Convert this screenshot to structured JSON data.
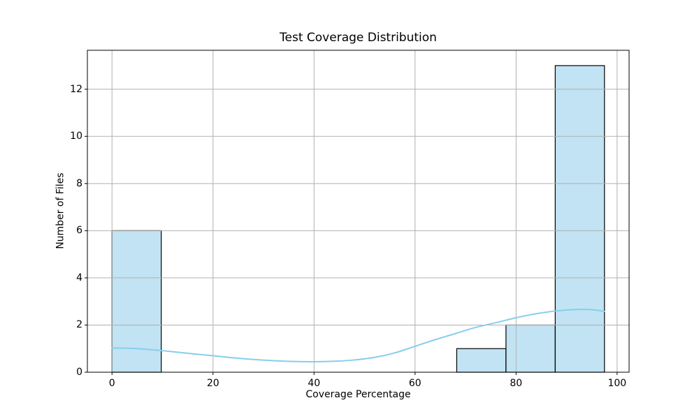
{
  "chart_data": {
    "type": "histogram",
    "title": "Test Coverage Distribution",
    "xlabel": "Coverage Percentage",
    "ylabel": "Number of Files",
    "xlim": [
      -4.875,
      102.375
    ],
    "ylim": [
      0,
      13.65
    ],
    "xticks": [
      0,
      20,
      40,
      60,
      80,
      100
    ],
    "yticks": [
      0,
      2,
      4,
      6,
      8,
      10,
      12
    ],
    "grid": true,
    "legend": false,
    "bin_edges": [
      0,
      9.75,
      19.5,
      29.25,
      39,
      48.75,
      58.5,
      68.25,
      78,
      87.75,
      97.5
    ],
    "counts": [
      6,
      0,
      0,
      0,
      0,
      0,
      0,
      1,
      2,
      13
    ],
    "kde": {
      "x": [
        0,
        4,
        8,
        12,
        16,
        20,
        24,
        28,
        32,
        36,
        40,
        44,
        48,
        52,
        56,
        60,
        64,
        68,
        72,
        76,
        80,
        84,
        88,
        92,
        95,
        97.5
      ],
      "y": [
        1.03,
        1.01,
        0.95,
        0.87,
        0.78,
        0.7,
        0.61,
        0.54,
        0.49,
        0.455,
        0.445,
        0.465,
        0.52,
        0.63,
        0.82,
        1.1,
        1.38,
        1.64,
        1.9,
        2.1,
        2.31,
        2.48,
        2.6,
        2.66,
        2.65,
        2.58
      ]
    },
    "colors": {
      "bar_fill": "#c1e3f3",
      "bar_edge": "#000000",
      "kde_line": "#87ceeb",
      "grid": "#b0b0b0",
      "spine": "#000000",
      "text": "#000000"
    }
  }
}
